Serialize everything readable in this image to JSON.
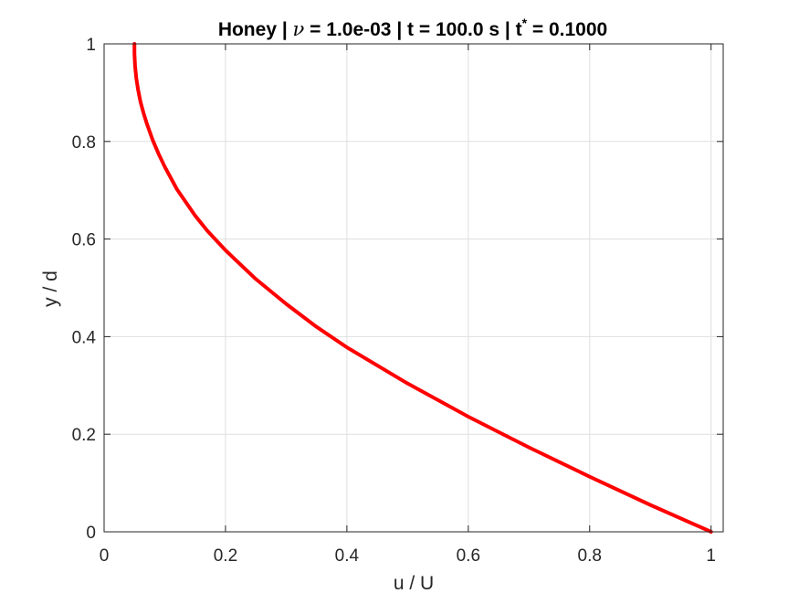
{
  "chart_data": {
    "type": "line",
    "title": {
      "prefix": "Honey | ",
      "symbol": "ν",
      "middle": " = 1.0e-03 | t = 100.0 s | t",
      "superscript": "*",
      "suffix": " = 0.1000"
    },
    "xlabel": "u / U",
    "ylabel": "y / d",
    "xlim": [
      0,
      1.02
    ],
    "ylim": [
      0,
      1
    ],
    "xticks": [
      0,
      0.2,
      0.4,
      0.6,
      0.8,
      1
    ],
    "xtick_labels": [
      "0",
      "0.2",
      "0.4",
      "0.6",
      "0.8",
      "1"
    ],
    "yticks": [
      0,
      0.2,
      0.4,
      0.6,
      0.8,
      1
    ],
    "ytick_labels": [
      "0",
      "0.2",
      "0.4",
      "0.6",
      "0.8",
      "1"
    ],
    "grid": true,
    "series": [
      {
        "color": "#ff0000",
        "x": [
          1.0,
          0.9,
          0.8,
          0.7,
          0.6,
          0.5,
          0.4,
          0.35,
          0.3,
          0.25,
          0.2,
          0.17,
          0.15,
          0.12,
          0.1,
          0.09,
          0.08,
          0.07,
          0.065,
          0.06,
          0.056,
          0.053,
          0.051,
          0.05,
          0.05
        ],
        "y": [
          0.0,
          0.055,
          0.113,
          0.173,
          0.236,
          0.304,
          0.378,
          0.42,
          0.467,
          0.518,
          0.577,
          0.617,
          0.648,
          0.702,
          0.748,
          0.774,
          0.803,
          0.838,
          0.858,
          0.881,
          0.906,
          0.93,
          0.955,
          0.98,
          1.0
        ]
      }
    ]
  }
}
